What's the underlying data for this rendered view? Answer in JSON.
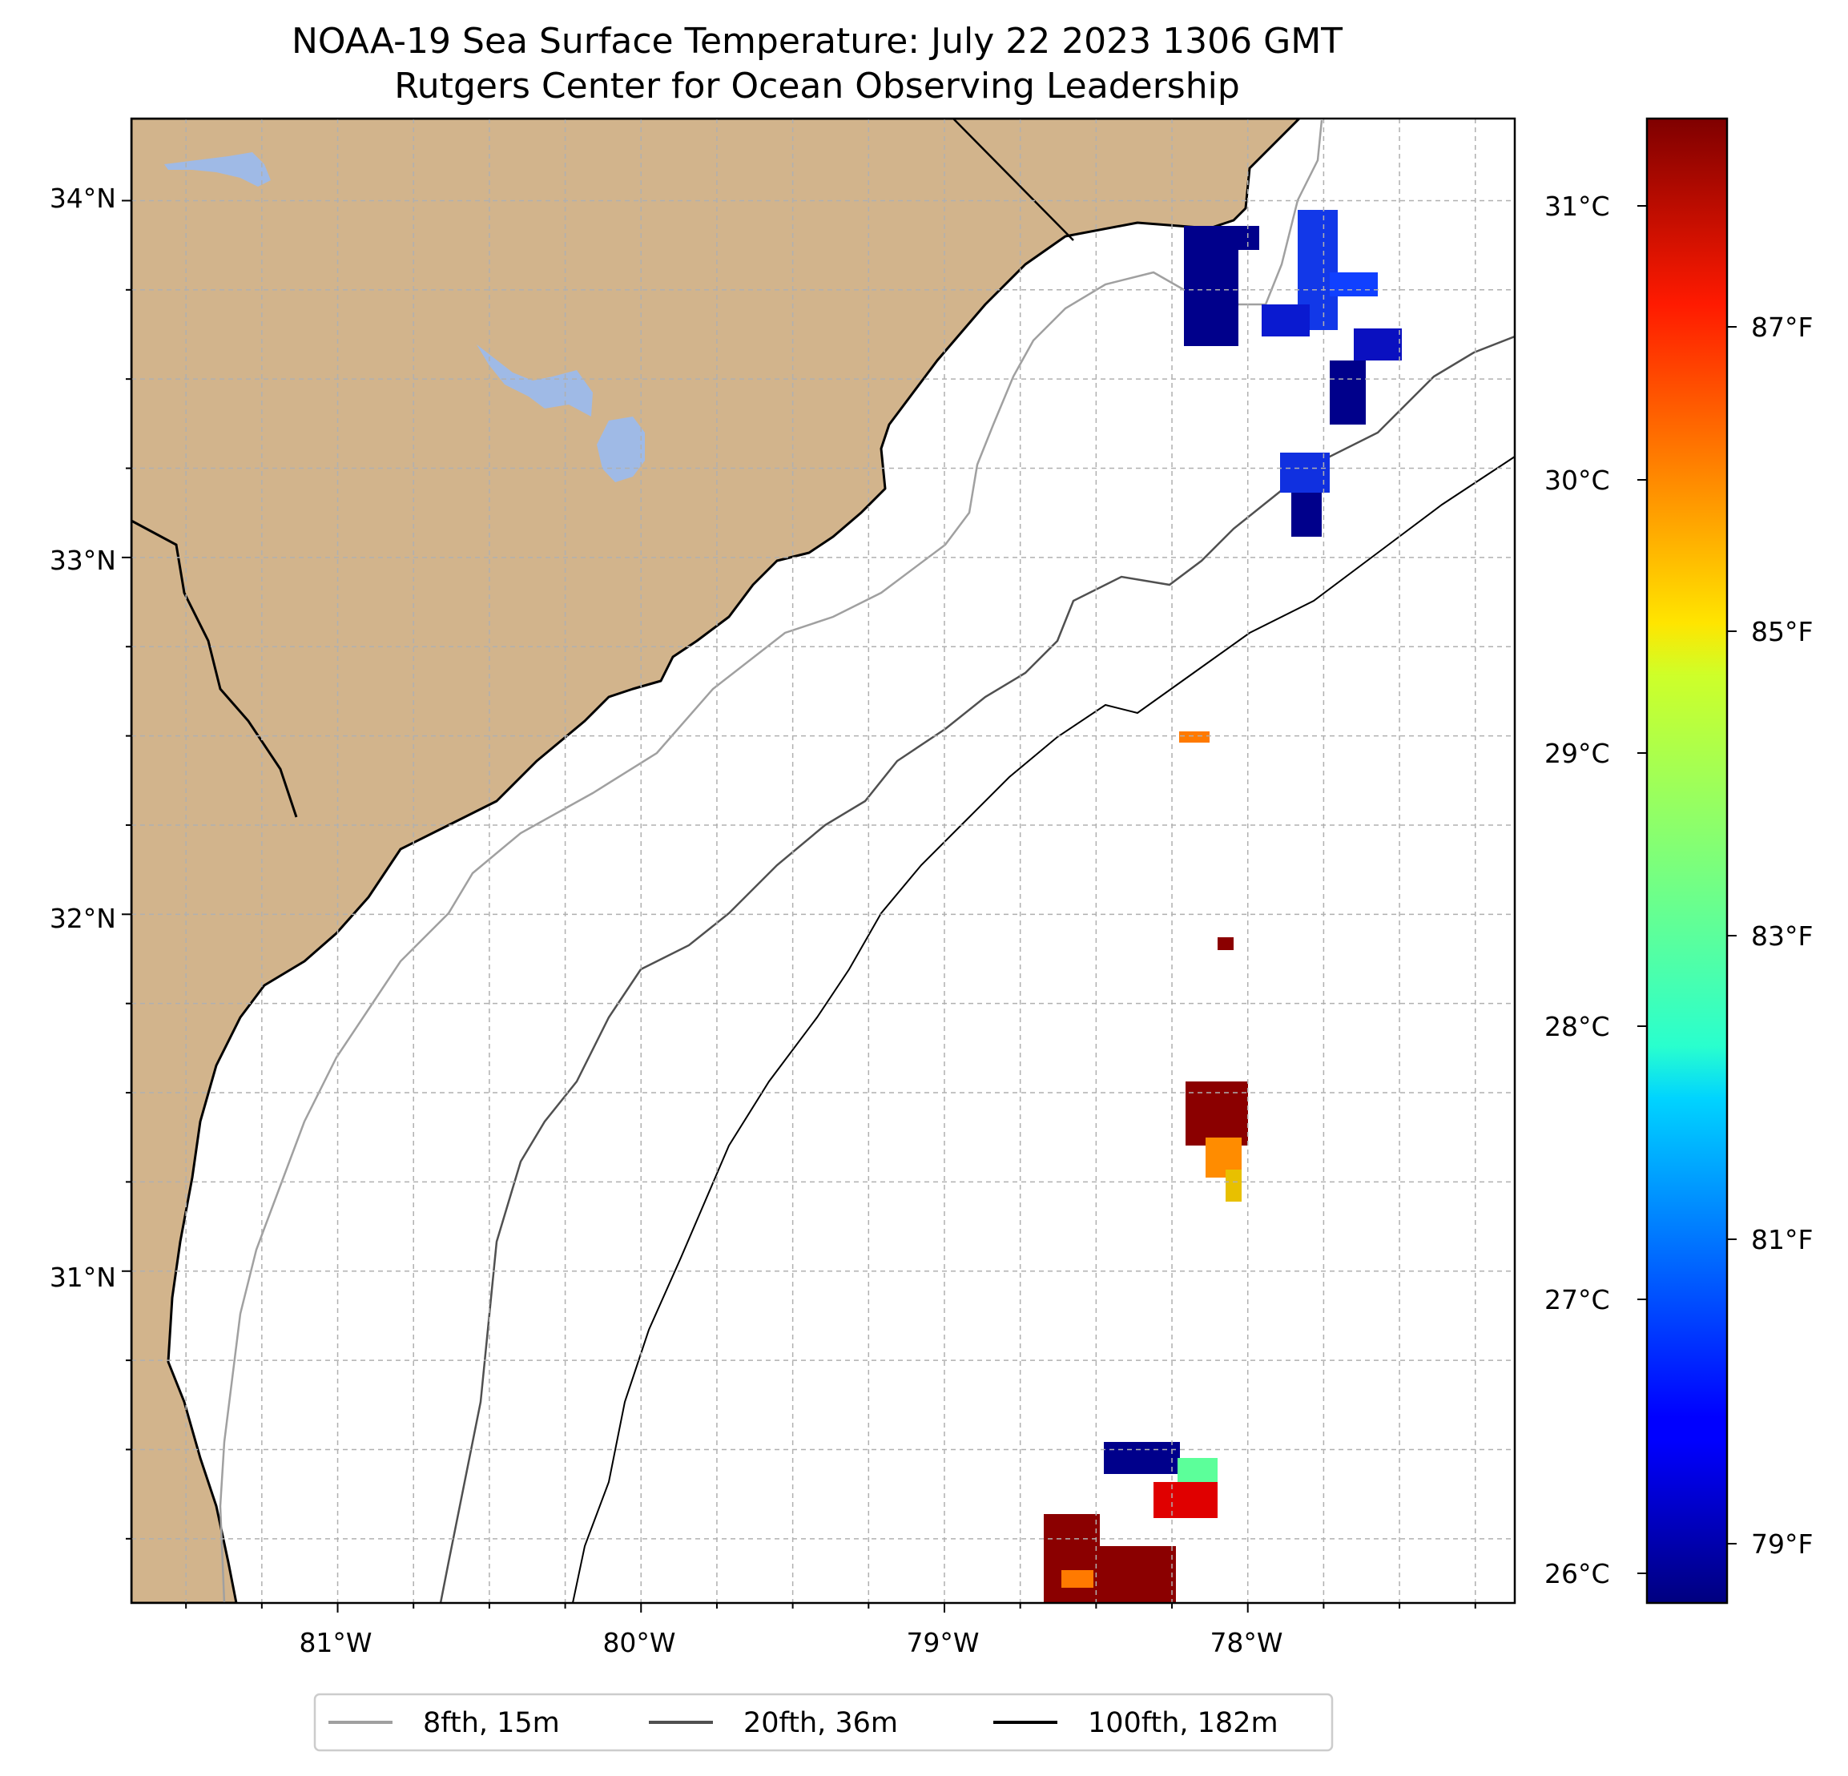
{
  "title": {
    "line1": "NOAA-19 Sea Surface Temperature: July 22 2023 1306 GMT",
    "line2": "Rutgers Center for Ocean Observing Leadership"
  },
  "map": {
    "lon_range": [
      -81.68,
      -77.12
    ],
    "lat_range": [
      30.07,
      34.23
    ],
    "land_color": "#d2b48c",
    "lake_color": "#9fbae6",
    "ocean_color": "#ffffff",
    "lat_labels": [
      "34°N",
      "33°N",
      "32°N",
      "31°N"
    ],
    "lon_labels": [
      "81°W",
      "80°W",
      "79°W",
      "78°W"
    ]
  },
  "colorbar": {
    "colormap": "jet",
    "celsius_range": [
      25.88,
      31.32
    ],
    "celsius_labels": [
      "31°C",
      "30°C",
      "29°C",
      "28°C",
      "27°C",
      "26°C"
    ],
    "fahrenheit_labels": [
      "87°F",
      "85°F",
      "83°F",
      "81°F",
      "79°F"
    ]
  },
  "legend": {
    "items": [
      {
        "label": "8fth, 15m",
        "color": "#a0a0a0"
      },
      {
        "label": "20fth, 36m",
        "color": "#505050"
      },
      {
        "label": "100fth, 182m",
        "color": "#000000"
      }
    ]
  },
  "sst_patches": [
    {
      "name": "north-cluster",
      "celsius": 26.1
    },
    {
      "name": "north-east-cluster",
      "celsius": 26.5
    },
    {
      "name": "mid-cluster",
      "celsius": 26.4
    },
    {
      "name": "small-cluster",
      "celsius": 30.8
    },
    {
      "name": "center-cluster",
      "celsius": 31.2
    },
    {
      "name": "south-cluster",
      "celsius": 27.5
    },
    {
      "name": "south-west-cluster",
      "celsius": 31.3
    }
  ]
}
